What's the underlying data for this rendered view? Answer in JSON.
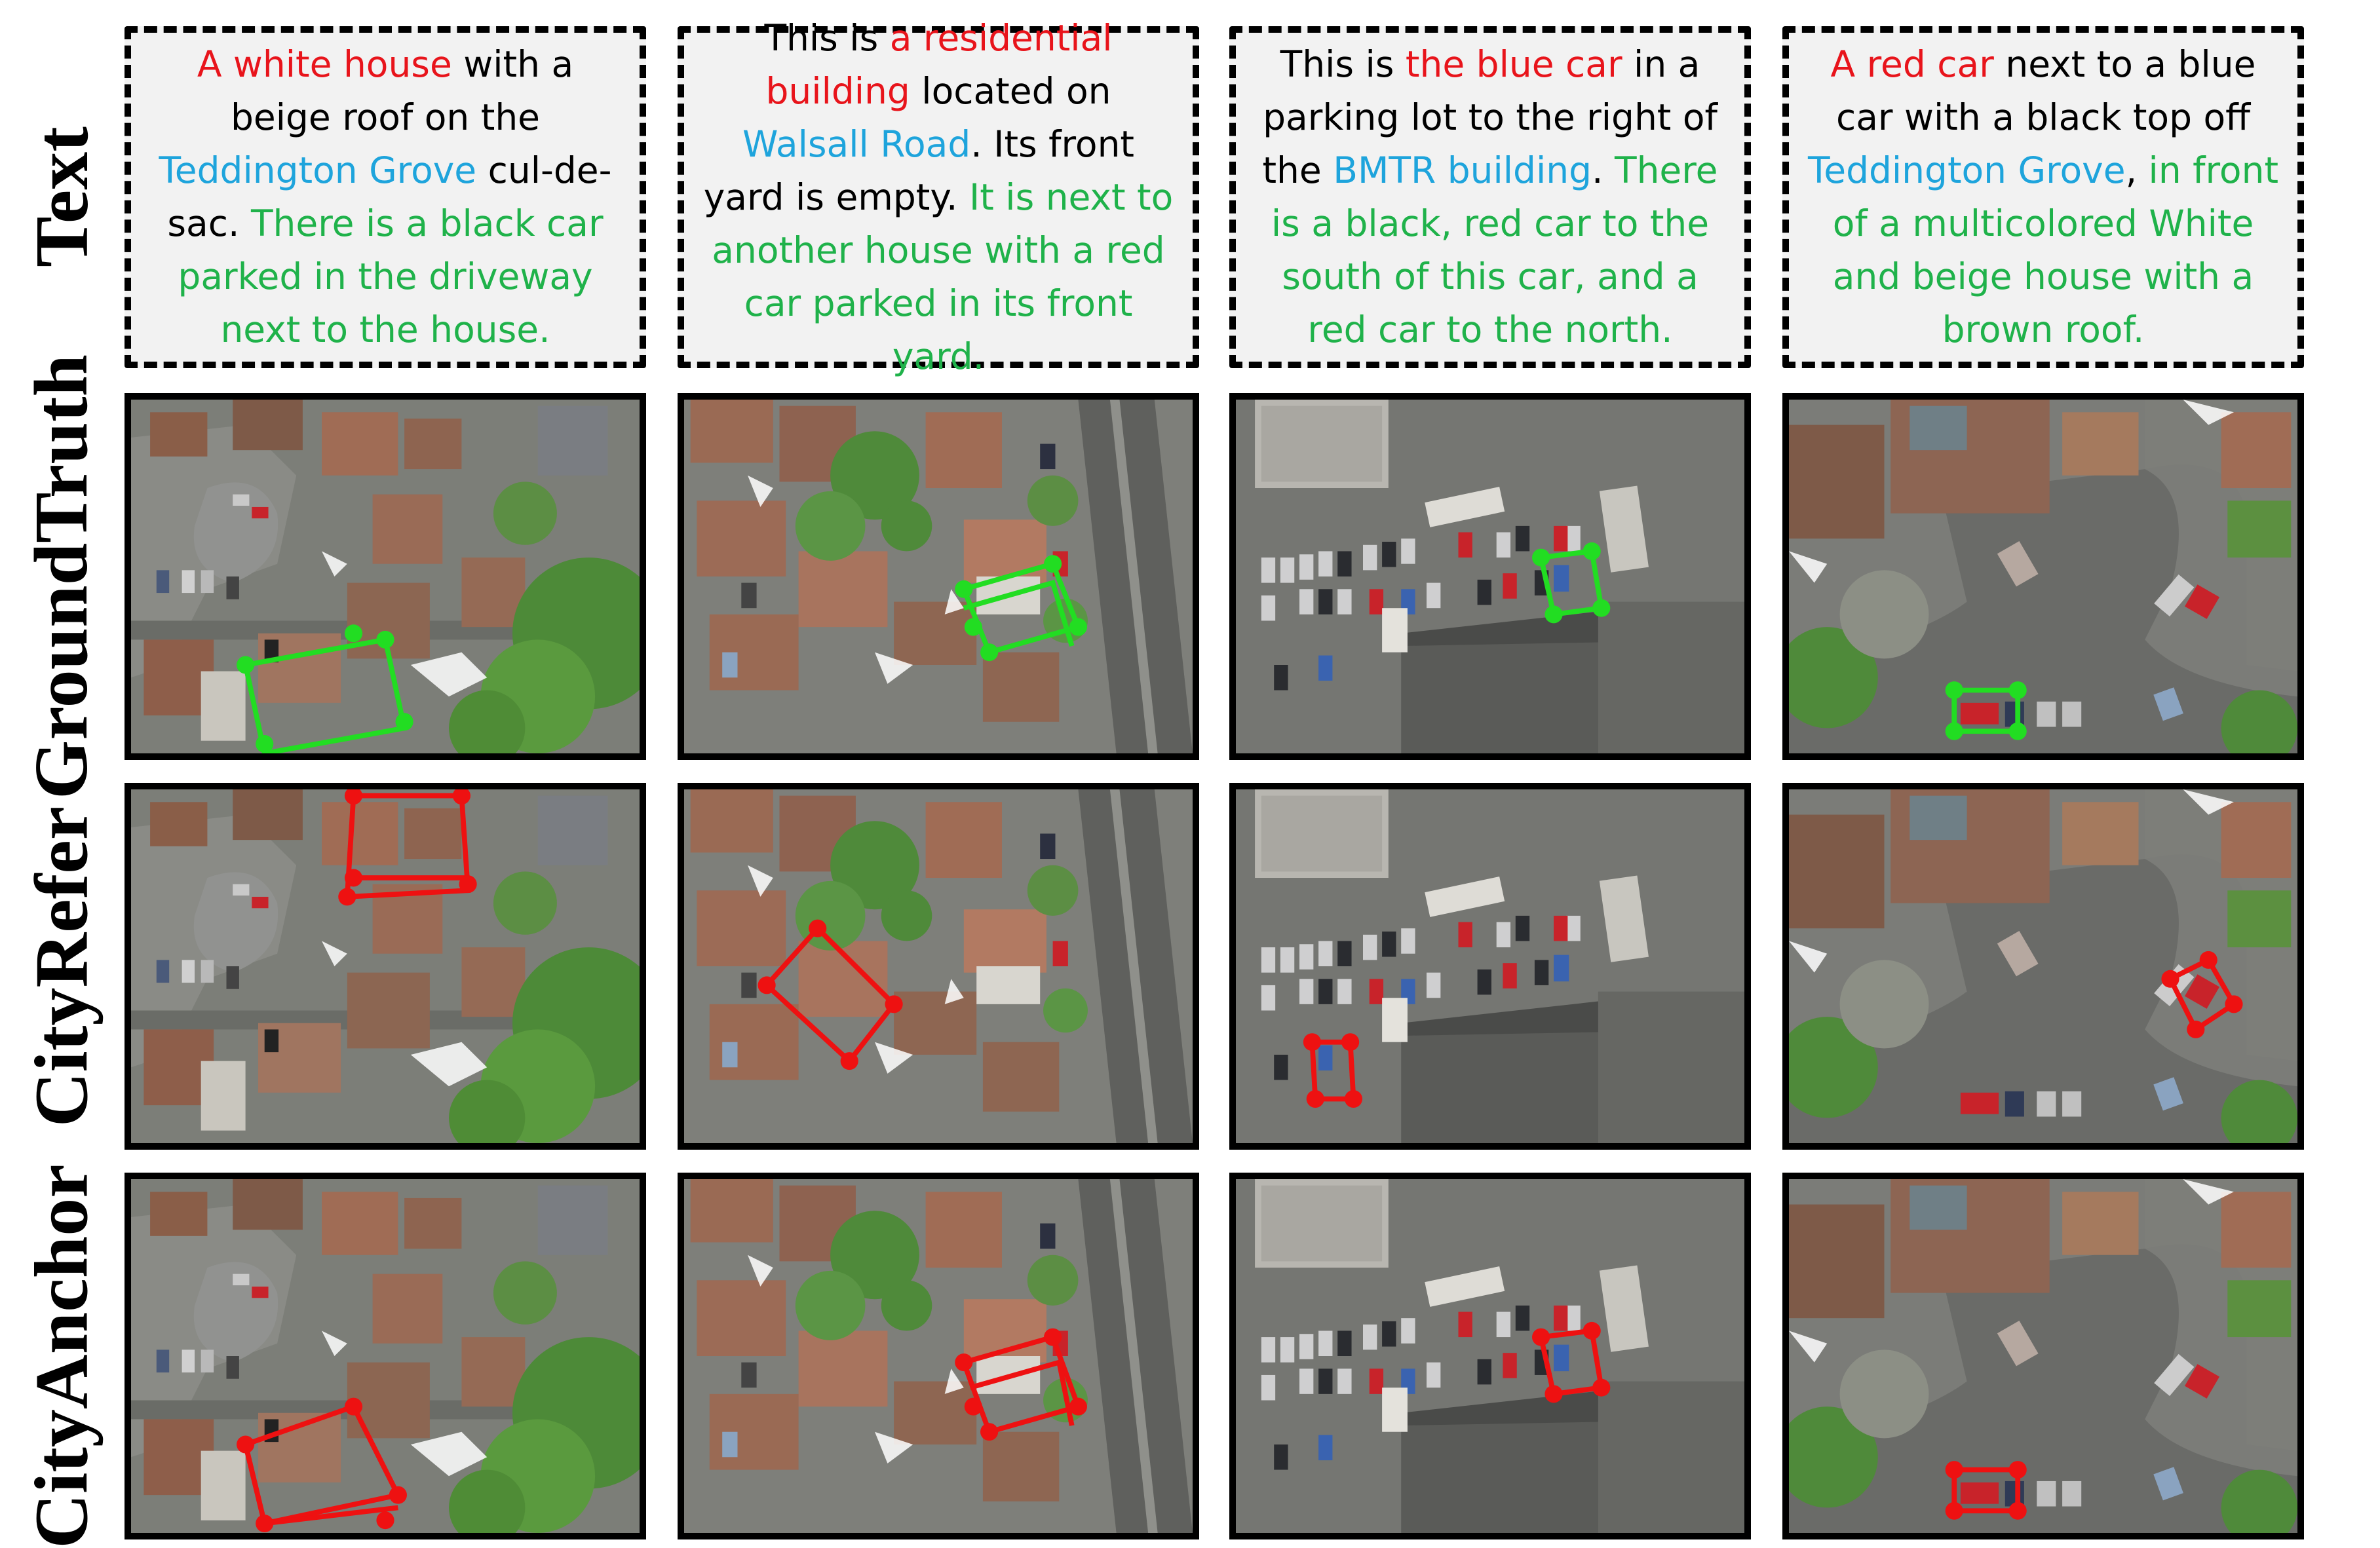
{
  "row_labels": [
    "Text",
    "GroundTruth",
    "CityRefer",
    "CityAnchor"
  ],
  "columns": [
    {
      "scene": "residential-culdesac",
      "caption": [
        {
          "t": "A white house",
          "c": "red"
        },
        {
          "t": " with a beige roof on the ",
          "c": "black"
        },
        {
          "t": "Teddington Grove",
          "c": "blue"
        },
        {
          "t": " cul-de-sac. ",
          "c": "black"
        },
        {
          "t": "There is a black car parked in the driveway next to the house.",
          "c": "green"
        }
      ]
    },
    {
      "scene": "residential-street",
      "caption": [
        {
          "t": "This is ",
          "c": "black"
        },
        {
          "t": "a residential building",
          "c": "red"
        },
        {
          "t": " located on ",
          "c": "black"
        },
        {
          "t": "Walsall Road",
          "c": "blue"
        },
        {
          "t": ". Its front yard is empty. ",
          "c": "black"
        },
        {
          "t": "It is next to another house with a red car parked in its front yard.",
          "c": "green"
        }
      ]
    },
    {
      "scene": "parking-lot",
      "caption": [
        {
          "t": "This is ",
          "c": "black"
        },
        {
          "t": "the blue car",
          "c": "red"
        },
        {
          "t": " in a parking lot to the right of the ",
          "c": "black"
        },
        {
          "t": "BMTR building",
          "c": "blue"
        },
        {
          "t": ". ",
          "c": "black"
        },
        {
          "t": "There is a black, red car to the south of this car, and a red car to the north.",
          "c": "green"
        }
      ]
    },
    {
      "scene": "culdesac-road",
      "caption": [
        {
          "t": "A red car",
          "c": "red"
        },
        {
          "t": " next to a blue car with a black top off ",
          "c": "black"
        },
        {
          "t": "Teddington Grove",
          "c": "blue"
        },
        {
          "t": ", ",
          "c": "black"
        },
        {
          "t": "in front of a multicolored White and beige house with a brown roof.",
          "c": "green"
        }
      ]
    }
  ],
  "colors": {
    "red": "#e8141b",
    "blue": "#1ea4dc",
    "green": "#1fb24a",
    "groundtruth_box": "#22dd22",
    "prediction_box": "#ee1111"
  }
}
